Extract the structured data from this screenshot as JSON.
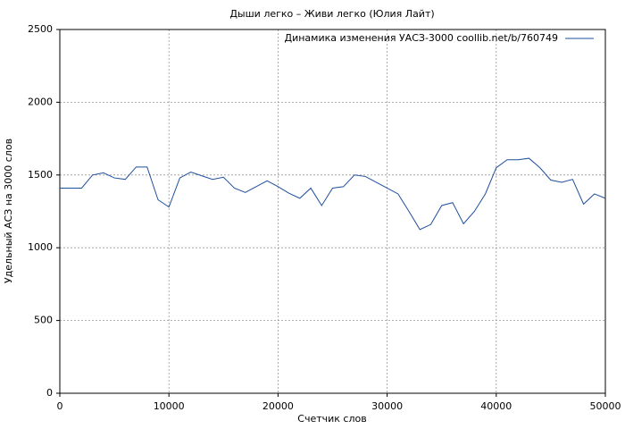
{
  "chart_data": {
    "type": "line",
    "title": "Дыши легко – Живи легко (Юлия Лайт)",
    "xlabel": "Счетчик слов",
    "ylabel": "Удельный АСЗ на 3000 слов",
    "x": [
      0,
      1000,
      2000,
      3000,
      4000,
      5000,
      6000,
      7000,
      8000,
      9000,
      10000,
      11000,
      12000,
      13000,
      14000,
      15000,
      16000,
      17000,
      18000,
      19000,
      20000,
      21000,
      22000,
      23000,
      24000,
      25000,
      26000,
      27000,
      28000,
      29000,
      30000,
      31000,
      32000,
      33000,
      34000,
      35000,
      36000,
      37000,
      38000,
      39000,
      40000,
      41000,
      42000,
      43000,
      44000,
      45000,
      46000,
      47000,
      48000,
      49000,
      50000
    ],
    "series": [
      {
        "name": "Динамика изменения УАСЗ-3000 coollib.net/b/760749",
        "color": "#1f4e9c",
        "values": [
          1410,
          1410,
          1410,
          1500,
          1515,
          1480,
          1470,
          1555,
          1555,
          1330,
          1280,
          1480,
          1520,
          1495,
          1470,
          1485,
          1410,
          1380,
          1420,
          1460,
          1420,
          1375,
          1340,
          1410,
          1290,
          1410,
          1420,
          1500,
          1490,
          1450,
          1410,
          1370,
          1250,
          1125,
          1160,
          1290,
          1310,
          1165,
          1250,
          1370,
          1550,
          1605,
          1605,
          1615,
          1550,
          1465,
          1450,
          1470,
          1300,
          1370,
          1340
        ]
      }
    ],
    "xlim": [
      0,
      50000
    ],
    "ylim": [
      0,
      2500
    ],
    "xticks": [
      0,
      10000,
      20000,
      30000,
      40000,
      50000
    ],
    "yticks": [
      0,
      500,
      1000,
      1500,
      2000,
      2500
    ],
    "grid": true,
    "legend": "upper right"
  }
}
